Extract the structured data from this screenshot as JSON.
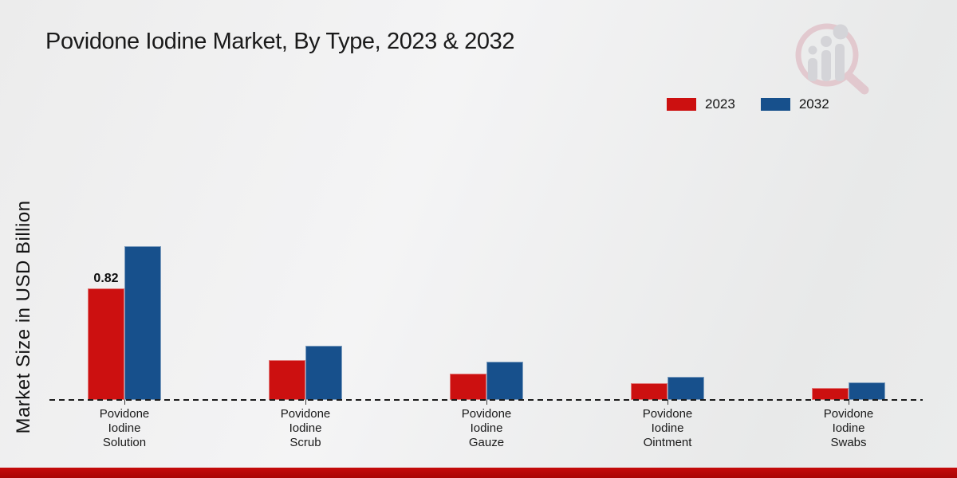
{
  "page": {
    "title": "Povidone Iodine Market, By Type, 2023 & 2032",
    "background_color": "#ececec",
    "footer_accent_color": "#b50808"
  },
  "legend": {
    "items": [
      {
        "label": "2023",
        "color": "#cc1010"
      },
      {
        "label": "2032",
        "color": "#17508c"
      }
    ]
  },
  "chart_data": {
    "type": "bar",
    "title": "Povidone Iodine Market, By Type, 2023 & 2032",
    "xlabel": "",
    "ylabel": "Market Size in USD Billion",
    "ylim": [
      0,
      1.18
    ],
    "grid": false,
    "legend_position": "top-right",
    "baseline_style": "dashed",
    "categories": [
      "Povidone Iodine Solution",
      "Povidone Iodine Scrub",
      "Povidone Iodine Gauze",
      "Povidone Iodine Ointment",
      "Povidone Iodine Swabs"
    ],
    "series": [
      {
        "name": "2023",
        "color": "#cc1010",
        "values": [
          0.82,
          0.29,
          0.19,
          0.12,
          0.09
        ]
      },
      {
        "name": "2032",
        "color": "#17508c",
        "values": [
          1.13,
          0.4,
          0.28,
          0.17,
          0.13
        ]
      }
    ],
    "annotations": [
      {
        "series_index": 0,
        "category_index": 0,
        "text": "0.82"
      }
    ]
  }
}
